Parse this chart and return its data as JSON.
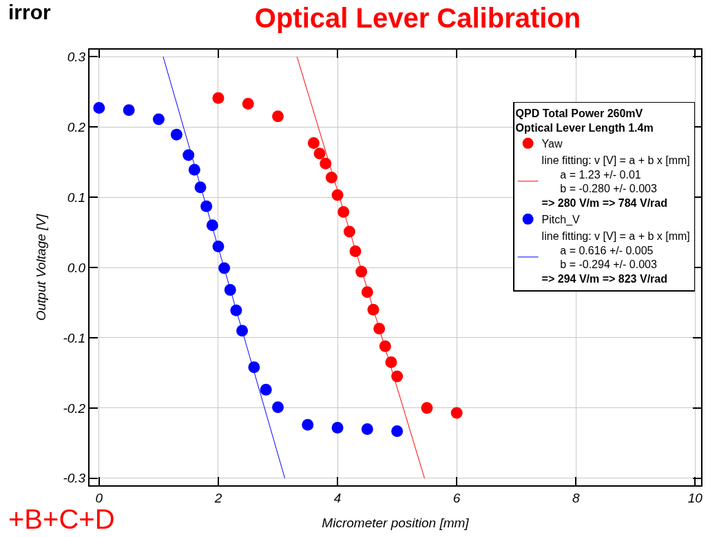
{
  "chart_data": {
    "type": "scatter",
    "title": "Optical Lever Calibration",
    "xlabel": "Micrometer position [mm]",
    "ylabel": "Output Voltage [V]",
    "legend_title": "QPD Total Power 260mV\nOptical Lever Length 1.4m",
    "xlim": [
      -0.16,
      10.1
    ],
    "xticks": [
      0,
      2,
      4,
      6,
      8,
      10
    ],
    "ylim": [
      -0.31,
      0.31
    ],
    "yticks": [
      -0.3,
      -0.2,
      -0.1,
      {
        "value": 0,
        "label": "0.0"
      },
      0.1,
      0.2,
      0.3
    ],
    "grid": true,
    "legend": "top right",
    "annotations": [
      "irror",
      "+B+C+D"
    ],
    "series": [
      {
        "name": "Yaw",
        "color": "#ff0000",
        "marker": "circle",
        "x": [
          2.0,
          2.5,
          3.0,
          3.6,
          3.7,
          3.8,
          3.9,
          4.0,
          4.1,
          4.2,
          4.3,
          4.4,
          4.5,
          4.6,
          4.7,
          4.8,
          4.9,
          5.0,
          5.5,
          6.0
        ],
        "values": [
          0.241,
          0.233,
          0.215,
          0.177,
          0.162,
          0.148,
          0.128,
          0.103,
          0.079,
          0.051,
          0.023,
          -0.006,
          -0.035,
          -0.06,
          -0.087,
          -0.112,
          -0.135,
          -0.155,
          -0.2,
          -0.207
        ]
      },
      {
        "type": "line",
        "name": "line fitting: v [V] = a + b x [mm]\n      a = 1.23 +/- 0.01\n      b = -0.280 +/- 0.003\n=> 280 V/m => 784 V/rad",
        "color": "#ff0000",
        "x": [
          3.32,
          5.46
        ],
        "values": [
          0.3,
          -0.3
        ]
      },
      {
        "name": "Pitch_V",
        "color": "#0000ff",
        "marker": "circle",
        "x": [
          0,
          0.5,
          1.0,
          1.3,
          1.5,
          1.6,
          1.7,
          1.8,
          1.9,
          2.0,
          2.1,
          2.2,
          2.3,
          2.4,
          2.6,
          2.8,
          3.0,
          3.5,
          4.0,
          4.5,
          5.0
        ],
        "values": [
          0.227,
          0.224,
          0.211,
          0.189,
          0.16,
          0.139,
          0.114,
          0.087,
          0.06,
          0.03,
          -0.001,
          -0.032,
          -0.061,
          -0.09,
          -0.142,
          -0.174,
          -0.199,
          -0.224,
          -0.228,
          -0.23,
          -0.233
        ]
      },
      {
        "type": "line",
        "name": "line fitting: v [V] = a + b x [mm]\n      a = 0.616 +/- 0.005\n      b = -0.294 +/- 0.003\n=> 294 V/m => 823 V/rad",
        "color": "#0000ff",
        "x": [
          1.075,
          3.116
        ],
        "values": [
          0.3,
          -0.3
        ]
      }
    ]
  }
}
